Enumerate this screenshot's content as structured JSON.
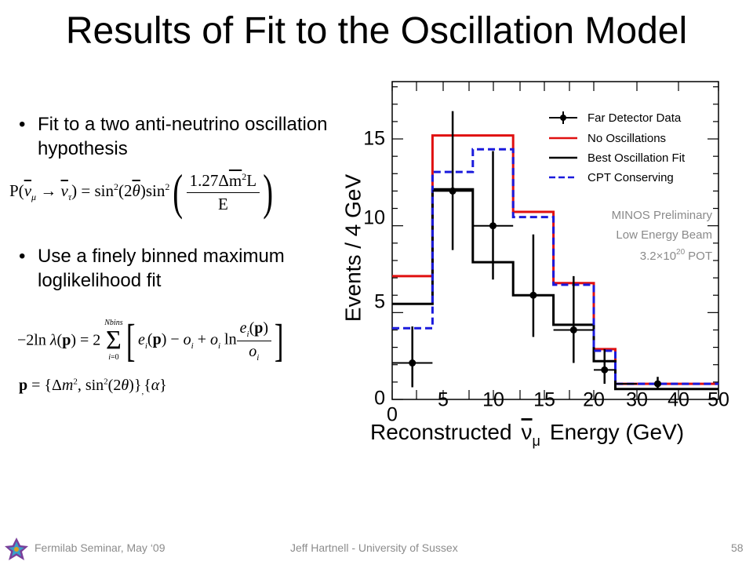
{
  "slide": {
    "title": "Results of Fit to the Oscillation Model",
    "bullets": [
      "Fit to a two anti-neutrino oscillation hypothesis",
      "Use a finely binned maximum loglikelihood fit"
    ],
    "footer": {
      "left": "Fermilab Seminar, May ‘09",
      "center": "Jeff Hartnell - University of Sussex",
      "page": "58"
    }
  },
  "colors": {
    "no_osc": "#e01010",
    "best_fit": "#000000",
    "cpt": "#1a1adc",
    "data": "#000000",
    "annotation": "#8a8a8a"
  },
  "chart_data": {
    "type": "line",
    "ylabel": "Events / 4 GeV",
    "xlabel_pre": "Reconstructed",
    "xlabel_nu": "ν",
    "xlabel_sub": "μ",
    "xlabel_post": "Energy (GeV)",
    "ylim": [
      0,
      18.3
    ],
    "yticks": [
      "0",
      "5",
      "10",
      "15"
    ],
    "xticks": [
      "0",
      "5",
      "10",
      "15",
      "20",
      "30",
      "40",
      "50"
    ],
    "bin_edges": [
      0,
      4,
      8,
      12,
      16,
      20,
      25,
      30,
      40,
      50
    ],
    "legend_position": "top-right",
    "legend": [
      "Far Detector Data",
      "No Oscillations",
      "Best Oscillation Fit",
      "CPT Conserving"
    ],
    "annotation": [
      "MINOS Preliminary",
      "Low Energy Beam",
      "3.2×10",
      "20",
      "POT"
    ],
    "series": [
      {
        "name": "No Oscillations",
        "values": [
          7.1,
          15.2,
          15.2,
          10.8,
          6.7,
          2.9,
          0.9,
          0.9,
          0.9
        ]
      },
      {
        "name": "Best Oscillation Fit",
        "values": [
          5.5,
          12.1,
          7.9,
          6.0,
          4.3,
          2.2,
          0.6,
          0.6,
          0.6
        ]
      },
      {
        "name": "CPT Conserving",
        "values": [
          4.1,
          13.1,
          14.4,
          10.5,
          6.6,
          2.8,
          0.9,
          0.9,
          0.9
        ]
      }
    ],
    "data_points": [
      {
        "x": 2,
        "y": 2.1,
        "yerr_lo": 1.4,
        "yerr_hi": 2.1
      },
      {
        "x": 6,
        "y": 12.0,
        "yerr_lo": 3.4,
        "yerr_hi": 4.6
      },
      {
        "x": 10,
        "y": 10.0,
        "yerr_lo": 3.1,
        "yerr_hi": 4.3
      },
      {
        "x": 14,
        "y": 6.0,
        "yerr_lo": 2.4,
        "yerr_hi": 3.5
      },
      {
        "x": 18,
        "y": 4.0,
        "yerr_lo": 1.9,
        "yerr_hi": 3.1
      },
      {
        "x": 22.5,
        "y": 1.7,
        "yerr_lo": 0.8,
        "yerr_hi": 1.2
      },
      {
        "x": 35,
        "y": 0.9,
        "yerr_lo": 0.3,
        "yerr_hi": 0.4
      }
    ]
  }
}
